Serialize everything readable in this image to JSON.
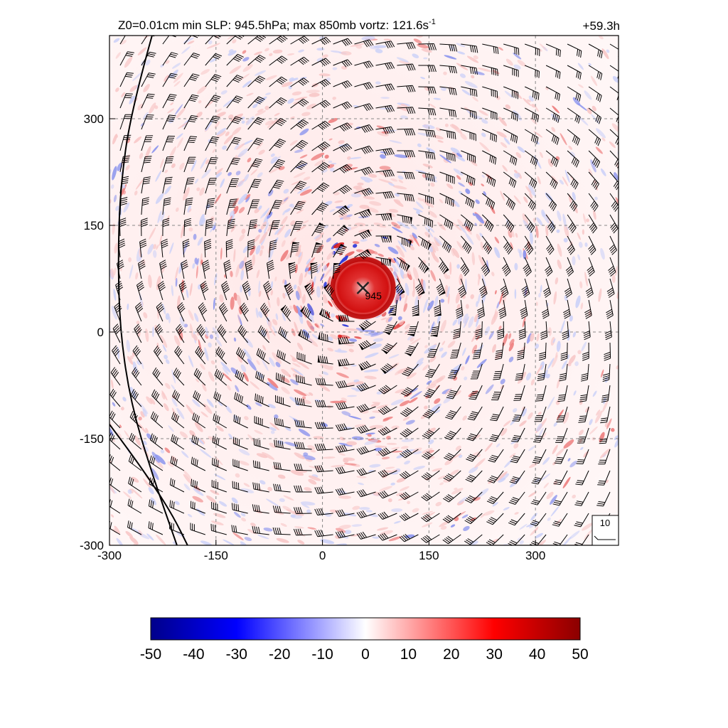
{
  "header": {
    "title_prefix": "Z0=0.01cm  min SLP: 945.5hPa; max 850mb vortz: 121.6s",
    "title_exp": "-1",
    "time_label": "+59.3h"
  },
  "chart_data": {
    "type": "heatmap",
    "description_fields": "850mb relative vorticity with wind barbs",
    "x_ticks": [
      -300,
      -150,
      0,
      150,
      300
    ],
    "y_ticks": [
      -300,
      -150,
      0,
      150,
      300
    ],
    "xlim": [
      -300,
      417
    ],
    "ylim": [
      -300,
      417
    ],
    "grid": true,
    "grid_style": "dashed",
    "center": {
      "x": 57,
      "y": 62,
      "pressure_label": "945"
    },
    "core_radius": 45,
    "barb_spacing": 30,
    "reference_vector_label": "10",
    "coastlines": [
      {
        "points": [
          [
            -240,
            417
          ],
          [
            -270,
            310
          ],
          [
            -285,
            200
          ],
          [
            -288,
            100
          ],
          [
            -285,
            0
          ],
          [
            -270,
            -100
          ],
          [
            -240,
            -200
          ],
          [
            -205,
            -300
          ]
        ]
      },
      {
        "points": [
          [
            -300,
            -130
          ],
          [
            -270,
            -170
          ],
          [
            -235,
            -220
          ],
          [
            -210,
            -260
          ],
          [
            -190,
            -300
          ]
        ]
      }
    ],
    "colorbar": {
      "ticks": [
        -50,
        -40,
        -30,
        -20,
        -10,
        0,
        10,
        20,
        30,
        40,
        50
      ],
      "min": -50,
      "max": 50,
      "colors": {
        "neg_max": "#00008b",
        "neg_mid": "#0000ff",
        "zero": "#ffffff",
        "pos_mid": "#ff0000",
        "pos_max": "#8b0000"
      }
    }
  }
}
